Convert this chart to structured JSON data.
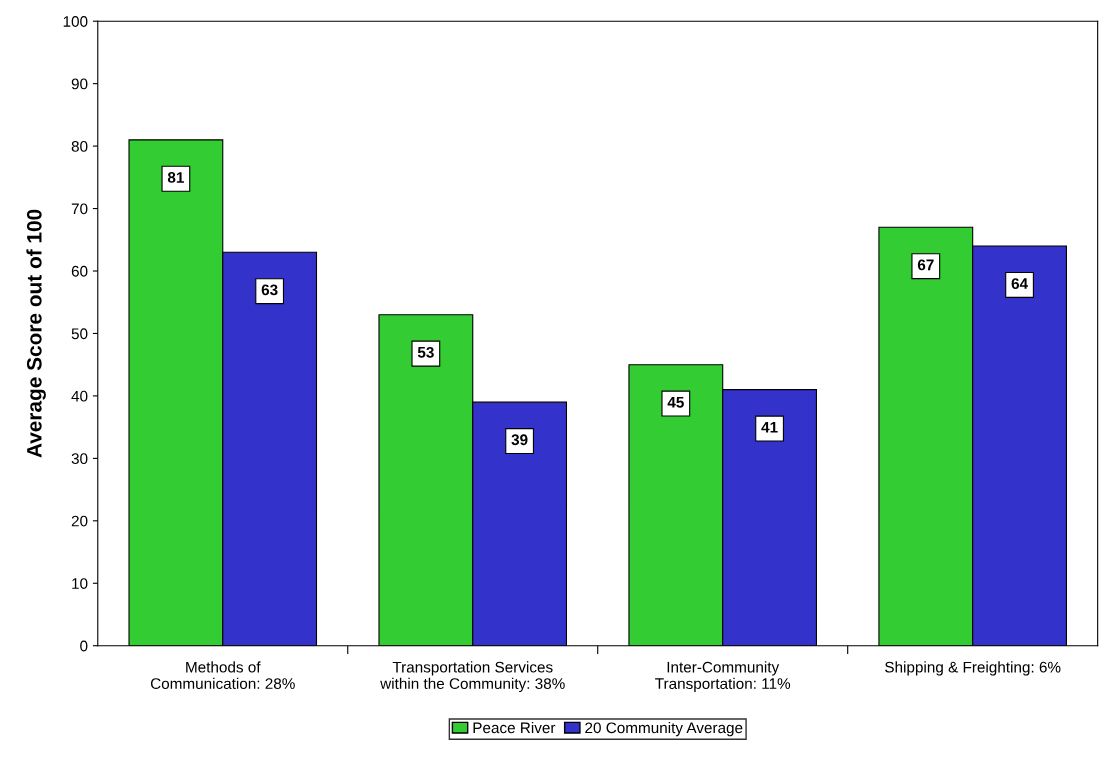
{
  "chart_data": {
    "type": "bar",
    "ylabel": "Average Score out of 100",
    "categories": [
      "Methods of\nCommunication: 28%",
      "Transportation Services\nwithin the Community: 38%",
      "Inter-Community\nTransportation: 11%",
      "Shipping & Freighting: 6%"
    ],
    "series": [
      {
        "name": "Peace River",
        "color": "#33cc33",
        "values": [
          81,
          53,
          45,
          67
        ]
      },
      {
        "name": "20 Community Average",
        "color": "#3333cc",
        "values": [
          63,
          39,
          41,
          64
        ]
      }
    ],
    "ylim": [
      0,
      100
    ],
    "yticks": [
      0,
      10,
      20,
      30,
      40,
      50,
      60,
      70,
      80,
      90,
      100
    ],
    "data_labels": true,
    "legend": "bottom",
    "grid": false
  }
}
